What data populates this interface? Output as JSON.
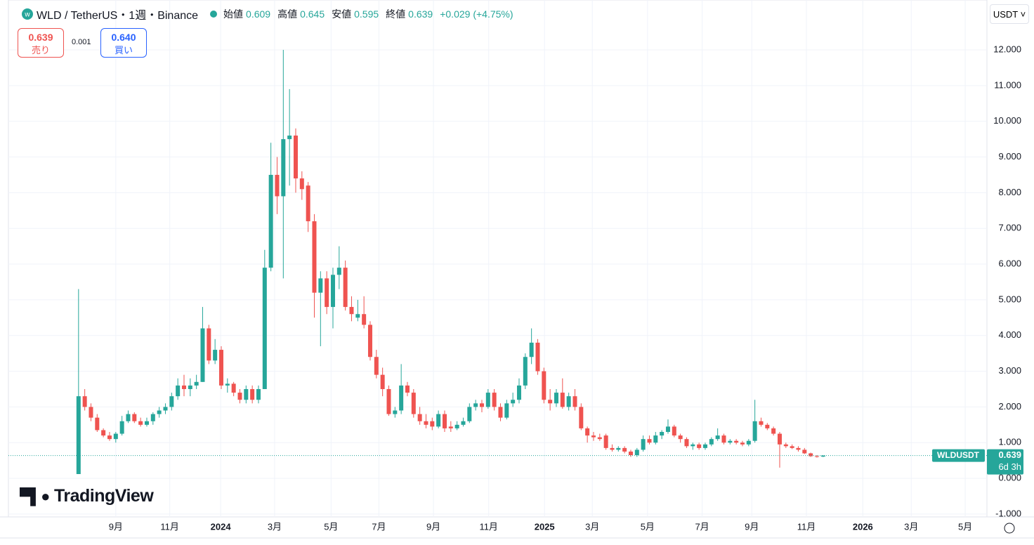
{
  "toolbar": {
    "sell_label": "売り",
    "spread": "0.001",
    "buy_price": "0.640",
    "buy_label": "買い",
    "currency": "USDT"
  },
  "chart_data": {
    "type": "candlestick",
    "title": "WLD / TetherUS・1週・Binance",
    "ohlc_labels": [
      "始値",
      "高値",
      "安値",
      "終値"
    ],
    "change": "+0.029 (+4.75%)",
    "symbol": "WLDUSDT",
    "countdown": "6d 3h",
    "logo": "TradingView",
    "up_color": "#26a69a",
    "down_color": "#ef5350",
    "grid": true,
    "ylim": [
      -1.08,
      13.2
    ],
    "yticks": [
      {
        "value": 12,
        "label": "12.000"
      },
      {
        "value": 11,
        "label": "11.000"
      },
      {
        "value": 10,
        "label": "10.000"
      },
      {
        "value": 9,
        "label": "9.000"
      },
      {
        "value": 8,
        "label": "8.000"
      },
      {
        "value": 7,
        "label": "7.000"
      },
      {
        "value": 6,
        "label": "6.000"
      },
      {
        "value": 5,
        "label": "5.000"
      },
      {
        "value": 4,
        "label": "4.000"
      },
      {
        "value": 3,
        "label": "3.000"
      },
      {
        "value": 2,
        "label": "2.000"
      },
      {
        "value": 1,
        "label": "1.000"
      },
      {
        "value": 0,
        "label": "0.000"
      },
      {
        "value": -1,
        "label": "-1.000"
      }
    ],
    "xlim": [
      -11.3,
      146.4
    ],
    "xticks": [
      {
        "value": 6.0,
        "label": "9月"
      },
      {
        "value": 14.7,
        "label": "11月"
      },
      {
        "value": 22.9,
        "label": "2024"
      },
      {
        "value": 31.6,
        "label": "3月"
      },
      {
        "value": 40.7,
        "label": "5月"
      },
      {
        "value": 48.4,
        "label": "7月"
      },
      {
        "value": 57.2,
        "label": "9月"
      },
      {
        "value": 66.1,
        "label": "11月"
      },
      {
        "value": 75.1,
        "label": "2025"
      },
      {
        "value": 82.8,
        "label": "3月"
      },
      {
        "value": 91.7,
        "label": "5月"
      },
      {
        "value": 100.5,
        "label": "7月"
      },
      {
        "value": 108.5,
        "label": "9月"
      },
      {
        "value": 117.3,
        "label": "11月"
      },
      {
        "value": 126.4,
        "label": "2026"
      },
      {
        "value": 134.2,
        "label": "3月"
      },
      {
        "value": 142.9,
        "label": "5月"
      }
    ],
    "series": [
      {
        "name": "WLDUSDT",
        "open": [
          0.12,
          2.3,
          2.0,
          1.7,
          1.35,
          1.2,
          1.1,
          1.25,
          1.6,
          1.8,
          1.6,
          1.5,
          1.6,
          1.8,
          1.9,
          2.0,
          2.3,
          2.6,
          2.5,
          2.6,
          2.7,
          4.2,
          3.3,
          3.6,
          2.6,
          2.65,
          2.4,
          2.2,
          2.5,
          2.2,
          2.5,
          5.9,
          8.5,
          7.9,
          9.5,
          9.6,
          8.4,
          8.2,
          7.2,
          5.2,
          5.6,
          4.8,
          5.7,
          5.9,
          4.8,
          4.5,
          4.6,
          4.3,
          3.4,
          2.9,
          2.5,
          1.8,
          1.9,
          2.6,
          2.4,
          1.8,
          1.6,
          1.6,
          1.45,
          1.8,
          1.45,
          1.4,
          1.5,
          1.6,
          2.0,
          2.1,
          2.0,
          2.4,
          2.0,
          1.7,
          2.1,
          2.2,
          2.6,
          3.4,
          3.8,
          3.0,
          2.2,
          2.1,
          2.4,
          2.0,
          2.3,
          2.0,
          1.4,
          1.2,
          1.15,
          1.2,
          0.85,
          0.8,
          0.85,
          0.75,
          0.65,
          0.8,
          1.1,
          1.0,
          1.2,
          1.3,
          1.45,
          1.2,
          1.1,
          0.9,
          0.95,
          0.85,
          0.95,
          1.1,
          1.2,
          1.0,
          1.05,
          1.0,
          0.95,
          1.05,
          1.6,
          1.5,
          1.4,
          1.25,
          0.95,
          0.9,
          0.85,
          0.8,
          0.7,
          0.62,
          0.609
        ],
        "high": [
          5.3,
          2.5,
          2.1,
          1.8,
          1.4,
          1.3,
          1.3,
          1.75,
          1.9,
          1.85,
          1.7,
          1.7,
          1.85,
          2.0,
          2.1,
          2.4,
          2.8,
          2.9,
          2.8,
          2.9,
          4.8,
          4.3,
          3.9,
          3.7,
          2.8,
          2.7,
          2.5,
          2.6,
          2.6,
          2.6,
          6.4,
          9.4,
          9.0,
          12.0,
          10.9,
          9.8,
          8.6,
          8.3,
          7.4,
          5.8,
          5.8,
          5.9,
          6.5,
          6.1,
          5.1,
          5.0,
          5.1,
          4.4,
          3.6,
          3.1,
          2.6,
          2.0,
          3.2,
          2.7,
          2.5,
          2.0,
          1.8,
          1.7,
          1.9,
          1.9,
          1.6,
          1.6,
          1.7,
          2.1,
          2.2,
          2.2,
          2.5,
          2.5,
          2.1,
          2.2,
          2.4,
          2.8,
          3.5,
          4.2,
          3.9,
          3.1,
          2.5,
          2.5,
          2.8,
          2.4,
          2.5,
          2.1,
          1.45,
          1.3,
          1.25,
          1.25,
          0.95,
          0.9,
          0.9,
          0.8,
          0.85,
          1.2,
          1.2,
          1.3,
          1.35,
          1.65,
          1.5,
          1.25,
          1.15,
          1.0,
          1.0,
          1.0,
          1.15,
          1.4,
          1.25,
          1.1,
          1.1,
          1.05,
          1.1,
          2.2,
          1.7,
          1.55,
          1.45,
          1.3,
          1.0,
          0.95,
          0.9,
          0.85,
          0.72,
          0.65,
          0.645
        ],
        "low": [
          0.12,
          1.9,
          1.6,
          1.3,
          1.15,
          1.05,
          1.0,
          1.2,
          1.55,
          1.55,
          1.45,
          1.45,
          1.5,
          1.7,
          1.8,
          1.9,
          2.2,
          2.3,
          2.3,
          2.5,
          2.7,
          3.2,
          3.2,
          2.5,
          2.4,
          2.3,
          2.1,
          2.1,
          2.1,
          2.1,
          2.5,
          5.8,
          7.4,
          5.6,
          8.2,
          8.0,
          7.8,
          6.9,
          4.5,
          3.7,
          4.6,
          4.2,
          5.3,
          4.7,
          4.4,
          4.4,
          4.2,
          3.3,
          2.8,
          2.3,
          1.75,
          1.7,
          1.8,
          2.3,
          1.7,
          1.5,
          1.4,
          1.35,
          1.4,
          1.3,
          1.3,
          1.35,
          1.45,
          1.55,
          1.9,
          1.85,
          1.95,
          1.9,
          1.6,
          1.65,
          2.0,
          2.1,
          2.5,
          3.2,
          2.9,
          2.1,
          1.9,
          2.0,
          1.95,
          1.9,
          1.9,
          1.35,
          1.0,
          1.05,
          1.05,
          0.8,
          0.75,
          0.75,
          0.7,
          0.6,
          0.6,
          0.75,
          0.95,
          0.95,
          1.1,
          1.25,
          1.15,
          1.0,
          0.85,
          0.8,
          0.8,
          0.8,
          0.9,
          1.05,
          0.95,
          0.95,
          0.95,
          0.9,
          0.9,
          1.0,
          1.45,
          1.35,
          1.2,
          0.3,
          0.85,
          0.82,
          0.75,
          0.68,
          0.6,
          0.58,
          0.595
        ],
        "close": [
          2.3,
          2.0,
          1.7,
          1.35,
          1.2,
          1.1,
          1.25,
          1.6,
          1.8,
          1.6,
          1.5,
          1.6,
          1.8,
          1.9,
          2.0,
          2.3,
          2.6,
          2.5,
          2.6,
          2.7,
          4.2,
          3.3,
          3.6,
          2.6,
          2.65,
          2.4,
          2.2,
          2.5,
          2.2,
          2.5,
          5.9,
          8.5,
          7.9,
          9.5,
          9.6,
          8.4,
          8.1,
          7.2,
          5.2,
          5.6,
          4.8,
          5.7,
          5.9,
          4.8,
          4.6,
          4.6,
          4.3,
          3.4,
          2.9,
          2.5,
          1.8,
          1.9,
          2.6,
          2.4,
          1.8,
          1.6,
          1.5,
          1.45,
          1.8,
          1.4,
          1.4,
          1.5,
          1.6,
          2.0,
          2.1,
          2.0,
          2.4,
          2.0,
          1.7,
          2.1,
          2.2,
          2.6,
          3.4,
          3.8,
          3.0,
          2.2,
          2.1,
          2.4,
          2.0,
          2.3,
          2.0,
          1.4,
          1.2,
          1.15,
          1.1,
          0.85,
          0.8,
          0.85,
          0.75,
          0.65,
          0.8,
          1.1,
          1.0,
          1.2,
          1.3,
          1.45,
          1.2,
          1.1,
          0.9,
          0.95,
          0.85,
          0.95,
          1.1,
          1.2,
          1.0,
          1.05,
          1.0,
          0.95,
          1.05,
          1.6,
          1.5,
          1.4,
          1.25,
          0.95,
          0.9,
          0.85,
          0.8,
          0.7,
          0.62,
          0.609,
          0.639
        ]
      }
    ]
  }
}
